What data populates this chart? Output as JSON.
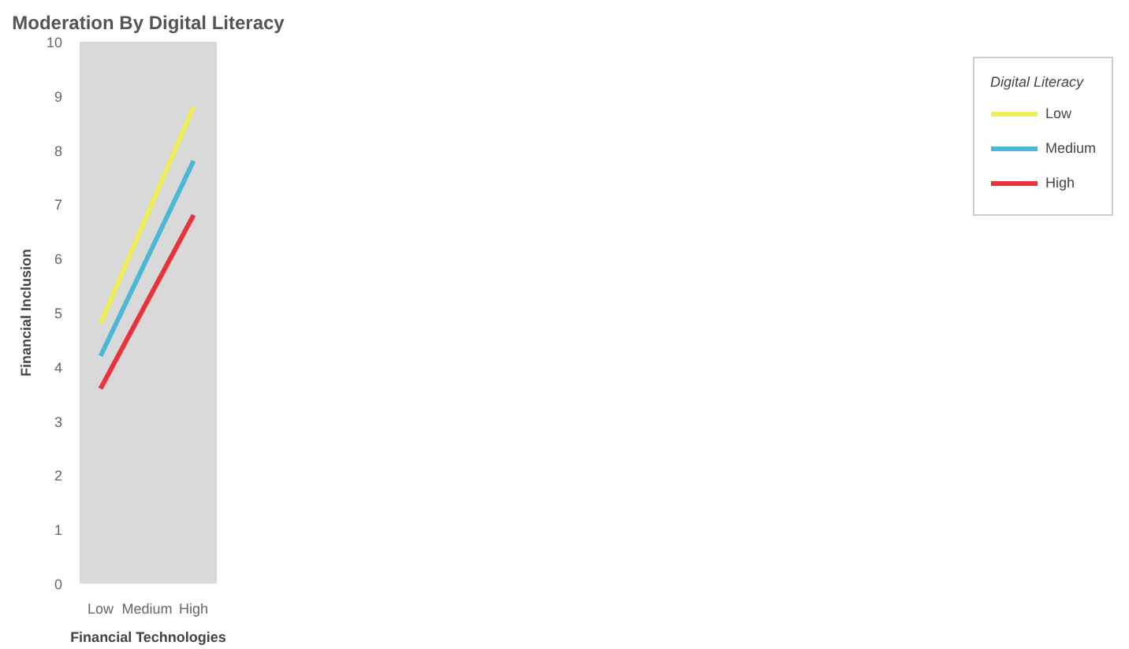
{
  "chart_data": {
    "type": "line",
    "title": "Moderation By Digital Literacy",
    "xlabel": "Financial Technologies",
    "ylabel": "Financial Inclusion",
    "legend_title": "Digital Literacy",
    "categories": [
      "Low",
      "Medium",
      "High"
    ],
    "series": [
      {
        "name": "Low",
        "color": "#eeee5a",
        "values": [
          4.8,
          6.8,
          8.8
        ]
      },
      {
        "name": "Medium",
        "color": "#4cb8d6",
        "values": [
          4.2,
          6.0,
          7.8
        ]
      },
      {
        "name": "High",
        "color": "#e8323c",
        "values": [
          3.6,
          5.2,
          6.8
        ]
      }
    ],
    "ylim": [
      0,
      10
    ],
    "yticks": [
      0,
      1,
      2,
      3,
      4,
      5,
      6,
      7,
      8,
      9,
      10
    ],
    "grid": false,
    "legend": "right",
    "line_style": "solid",
    "marker": "none"
  }
}
